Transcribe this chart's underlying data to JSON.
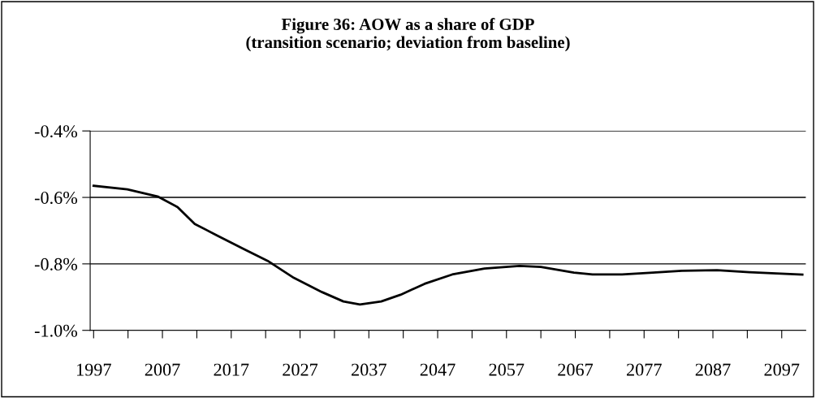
{
  "chart_data": {
    "type": "line",
    "title": "Figure 36: AOW as a share of GDP\n(transition scenario; deviation from baseline)",
    "series": [
      {
        "color": "#000000",
        "x": [
          1997,
          2001.9,
          2006.4,
          2009.2,
          2011.7,
          2014.9,
          2018.8,
          2022.3,
          2026.1,
          2030.2,
          2033.3,
          2035.7,
          2038.8,
          2041.6,
          2045.1,
          2049.1,
          2053.8,
          2058.9,
          2062.0,
          2066.8,
          2069.5,
          2073.8,
          2077.8,
          2082.5,
          2087.6,
          2092.3,
          2096.2,
          2100
        ],
        "values": [
          -0.565,
          -0.576,
          -0.598,
          -0.629,
          -0.68,
          -0.714,
          -0.755,
          -0.791,
          -0.842,
          -0.885,
          -0.913,
          -0.922,
          -0.913,
          -0.893,
          -0.86,
          -0.832,
          -0.814,
          -0.806,
          -0.809,
          -0.826,
          -0.832,
          -0.832,
          -0.827,
          -0.821,
          -0.819,
          -0.825,
          -0.829,
          -0.832
        ]
      }
    ],
    "xlim": [
      1996.5,
      2100.5
    ],
    "xticks": [
      {
        "value": 1997,
        "label": "1997"
      },
      {
        "value": 2007,
        "label": "2007"
      },
      {
        "value": 2017,
        "label": "2017"
      },
      {
        "value": 2027,
        "label": "2027"
      },
      {
        "value": 2037,
        "label": "2037"
      },
      {
        "value": 2047,
        "label": "2047"
      },
      {
        "value": 2057,
        "label": "2057"
      },
      {
        "value": 2067,
        "label": "2067"
      },
      {
        "value": 2077,
        "label": "2077"
      },
      {
        "value": 2087,
        "label": "2087"
      },
      {
        "value": 2097,
        "label": "2097"
      },
      {
        "value": 2002,
        "label": null
      },
      {
        "value": 2012,
        "label": null
      },
      {
        "value": 2022,
        "label": null
      },
      {
        "value": 2032,
        "label": null
      },
      {
        "value": 2042,
        "label": null
      },
      {
        "value": 2052,
        "label": null
      },
      {
        "value": 2062,
        "label": null
      },
      {
        "value": 2072,
        "label": null
      },
      {
        "value": 2082,
        "label": null
      },
      {
        "value": 2092,
        "label": null
      }
    ],
    "ylim": [
      -1.0,
      -0.4
    ],
    "yticks": [
      {
        "value": -1.0,
        "label": "-1.0%"
      },
      {
        "value": -0.8,
        "label": "-0.8%"
      },
      {
        "value": -0.6,
        "label": "-0.6%"
      },
      {
        "value": -0.4,
        "label": "-0.4%"
      }
    ],
    "grid": "y",
    "legend": false,
    "marker": "none",
    "line_style": "solid"
  }
}
